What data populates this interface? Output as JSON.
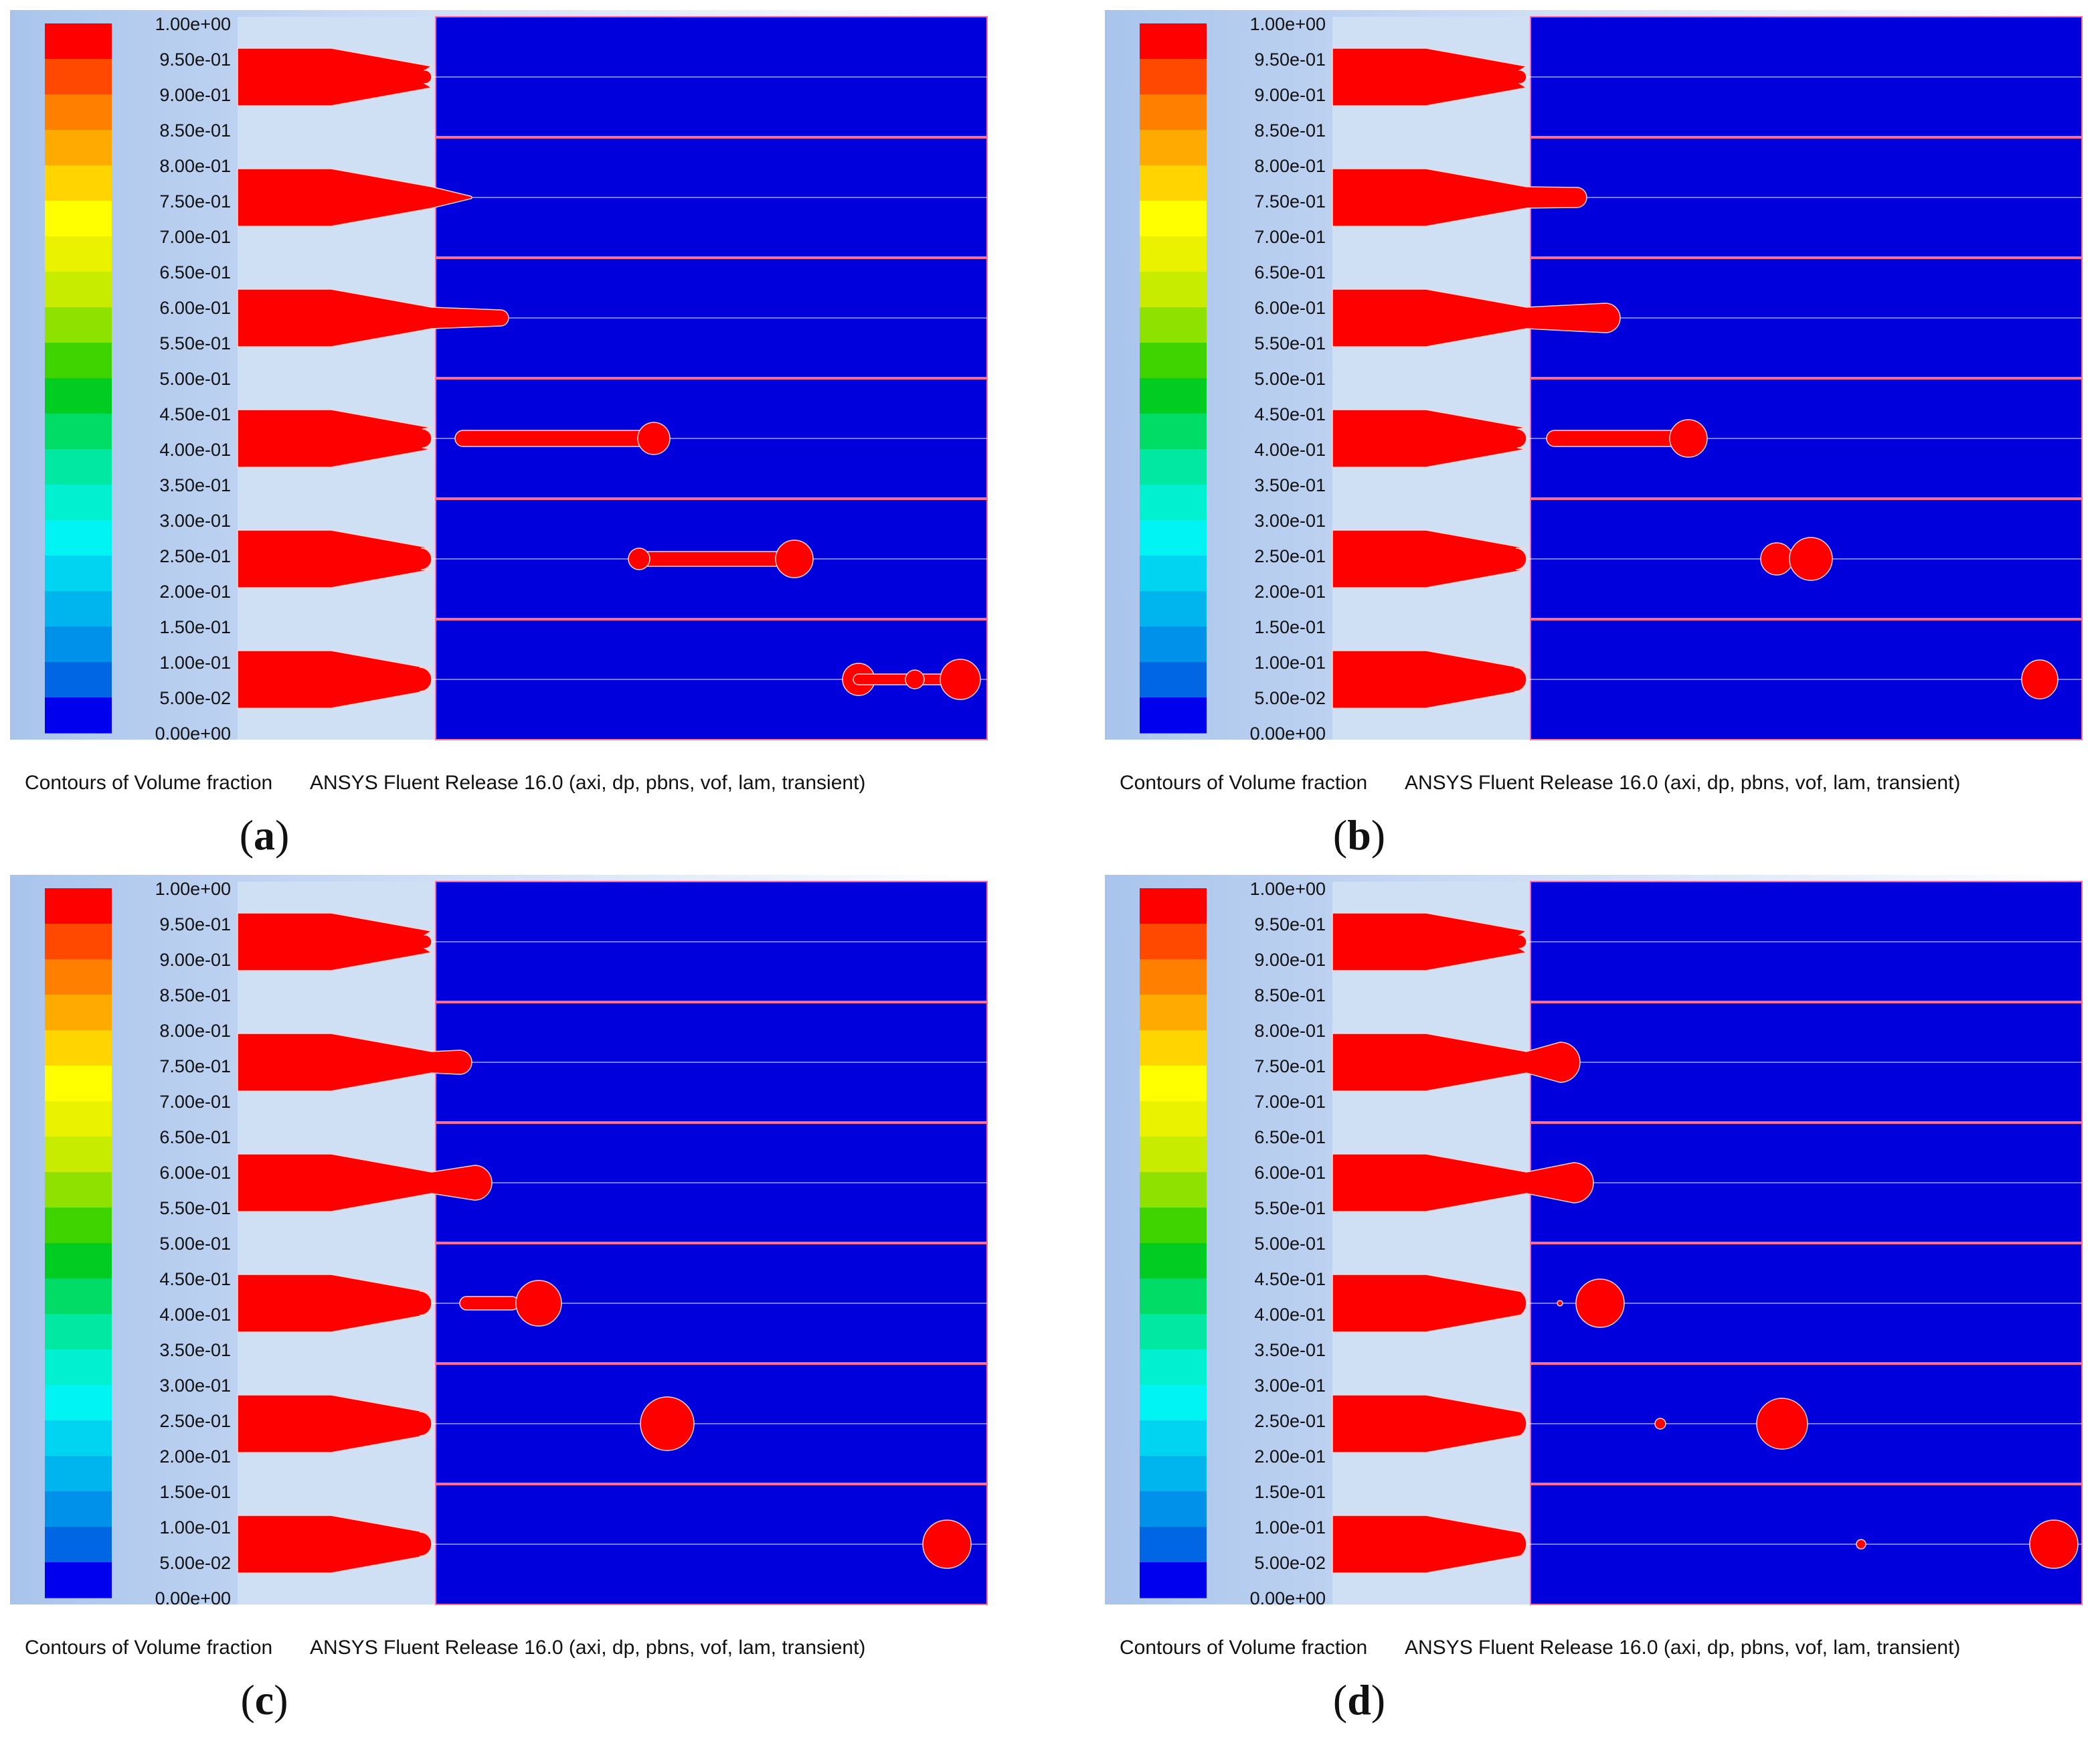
{
  "colorbar": {
    "ticks": [
      "1.00e+00",
      "9.50e-01",
      "9.00e-01",
      "8.50e-01",
      "8.00e-01",
      "7.50e-01",
      "7.00e-01",
      "6.50e-01",
      "6.00e-01",
      "5.50e-01",
      "5.00e-01",
      "4.50e-01",
      "4.00e-01",
      "3.50e-01",
      "3.00e-01",
      "2.50e-01",
      "2.00e-01",
      "1.50e-01",
      "1.00e-01",
      "5.00e-02",
      "0.00e+00"
    ],
    "colors": [
      "#ff0000",
      "#ff4800",
      "#ff7f00",
      "#ffaa00",
      "#ffd400",
      "#ffff00",
      "#eaf200",
      "#c8ec00",
      "#8fe100",
      "#3fd400",
      "#00cc22",
      "#00dc66",
      "#00e8a2",
      "#00f0d0",
      "#00f4f4",
      "#00d4f0",
      "#00b4ee",
      "#0092ea",
      "#0066e4",
      "#0000ee"
    ]
  },
  "colors": {
    "fluid": "#0000dd",
    "liquid": "#ff0000",
    "nozzle_region": "#cfe0f5",
    "row_border": "#ff6a96"
  },
  "caption": {
    "title": "Contours of Volume fraction",
    "release": "ANSYS Fluent Release 16.0 (axi, dp, pbns, vof, lam, transient)"
  },
  "panels": [
    {
      "letter": "a"
    },
    {
      "letter": "b"
    },
    {
      "letter": "c"
    },
    {
      "letter": "d"
    }
  ]
}
